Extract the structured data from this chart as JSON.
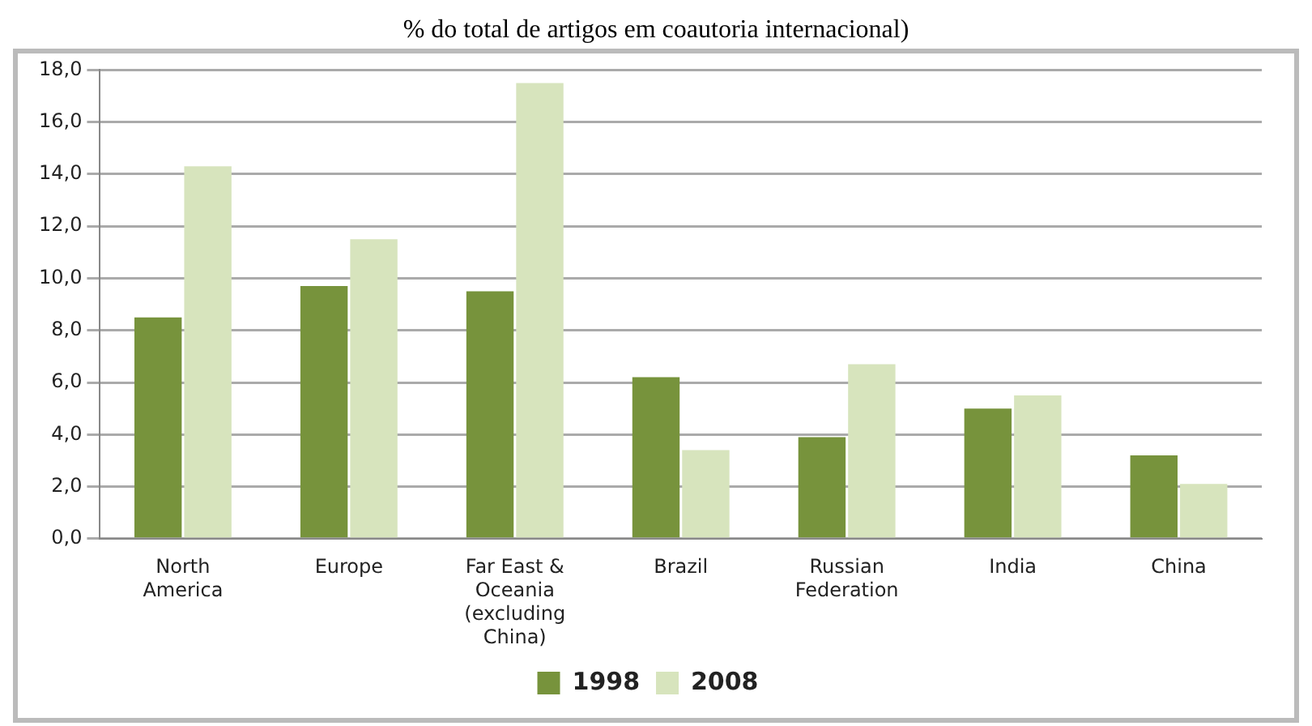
{
  "chart_data": {
    "type": "bar",
    "title": "% do total de artigos em coautoria internacional)",
    "categories": [
      "North America",
      "Europe",
      "Far East & Oceania (excluding China)",
      "Brazil",
      "Russian Federation",
      "India",
      "China"
    ],
    "series": [
      {
        "name": "1998",
        "color": "#77933c",
        "values": [
          8.5,
          9.7,
          9.5,
          6.2,
          3.9,
          5.0,
          3.2
        ]
      },
      {
        "name": "2008",
        "color": "#d7e4bd",
        "values": [
          14.3,
          11.5,
          17.5,
          3.4,
          6.7,
          5.5,
          2.1
        ]
      }
    ],
    "ylim": [
      0,
      18
    ],
    "yticks": [
      {
        "value": 0,
        "label": "0,0"
      },
      {
        "value": 2,
        "label": "2,0"
      },
      {
        "value": 4,
        "label": "4,0"
      },
      {
        "value": 6,
        "label": "6,0"
      },
      {
        "value": 8,
        "label": "8,0"
      },
      {
        "value": 10,
        "label": "10,0"
      },
      {
        "value": 12,
        "label": "12,0"
      },
      {
        "value": 14,
        "label": "14,0"
      },
      {
        "value": 16,
        "label": "16,0"
      },
      {
        "value": 18,
        "label": "18,0"
      }
    ],
    "grid": "y",
    "legend": "bottom"
  }
}
